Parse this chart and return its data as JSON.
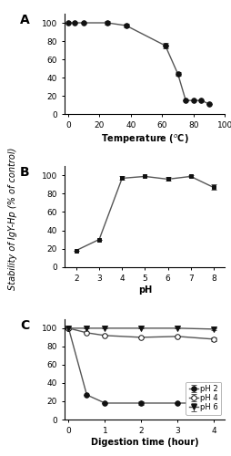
{
  "panel_A": {
    "x": [
      0,
      4,
      10,
      25,
      37,
      62,
      70,
      75,
      80,
      85,
      90
    ],
    "y": [
      100,
      100,
      100,
      100,
      97,
      75,
      44,
      15,
      15,
      15,
      11
    ],
    "yerr": [
      0,
      0,
      0,
      2,
      2,
      3,
      2,
      0,
      0,
      0,
      0
    ],
    "xlabel": "Temperature ($^o$C)",
    "xlim": [
      -2,
      100
    ],
    "ylim": [
      0,
      110
    ],
    "xticks": [
      0,
      20,
      40,
      60,
      80,
      100
    ],
    "yticks": [
      0,
      20,
      40,
      60,
      80,
      100
    ],
    "label": "A"
  },
  "panel_B": {
    "x": [
      2,
      3,
      4,
      5,
      6,
      7,
      8
    ],
    "y": [
      18,
      30,
      97,
      99,
      96,
      99,
      87
    ],
    "yerr": [
      0,
      0,
      2,
      0,
      2,
      1,
      3
    ],
    "xlabel": "pH",
    "xlim": [
      1.5,
      8.5
    ],
    "ylim": [
      0,
      110
    ],
    "xticks": [
      2,
      3,
      4,
      5,
      6,
      7,
      8
    ],
    "yticks": [
      0,
      20,
      40,
      60,
      80,
      100
    ],
    "label": "B"
  },
  "panel_C": {
    "pH2": {
      "x": [
        0,
        0.5,
        1,
        2,
        3,
        4
      ],
      "y": [
        100,
        27,
        18,
        18,
        18,
        18
      ],
      "yerr": [
        0,
        0,
        0,
        2,
        0,
        2
      ],
      "label": "pH 2"
    },
    "pH4": {
      "x": [
        0,
        0.5,
        1,
        2,
        3,
        4
      ],
      "y": [
        100,
        95,
        92,
        90,
        91,
        88
      ],
      "yerr": [
        0,
        0,
        0,
        0,
        0,
        2
      ],
      "label": "pH 4"
    },
    "pH6": {
      "x": [
        0,
        0.5,
        1,
        2,
        3,
        4
      ],
      "y": [
        100,
        100,
        100,
        100,
        100,
        99
      ],
      "yerr": [
        0,
        0,
        0,
        0,
        0,
        1
      ],
      "label": "pH 6"
    },
    "xlabel": "Digestion time (hour)",
    "xlim": [
      -0.1,
      4.3
    ],
    "ylim": [
      0,
      110
    ],
    "xticks": [
      0,
      1,
      2,
      3,
      4
    ],
    "yticks": [
      0,
      20,
      40,
      60,
      80,
      100
    ],
    "label": "C"
  },
  "ylabel_shared": "Stability of IgY-Hp (% of control)",
  "line_color": "#555555",
  "marker_color": "#111111",
  "marker_size": 4,
  "linewidth": 1.0,
  "font_size": 6.5,
  "axis_label_font_size": 7,
  "panel_label_fontsize": 10,
  "background_color": "#ffffff"
}
